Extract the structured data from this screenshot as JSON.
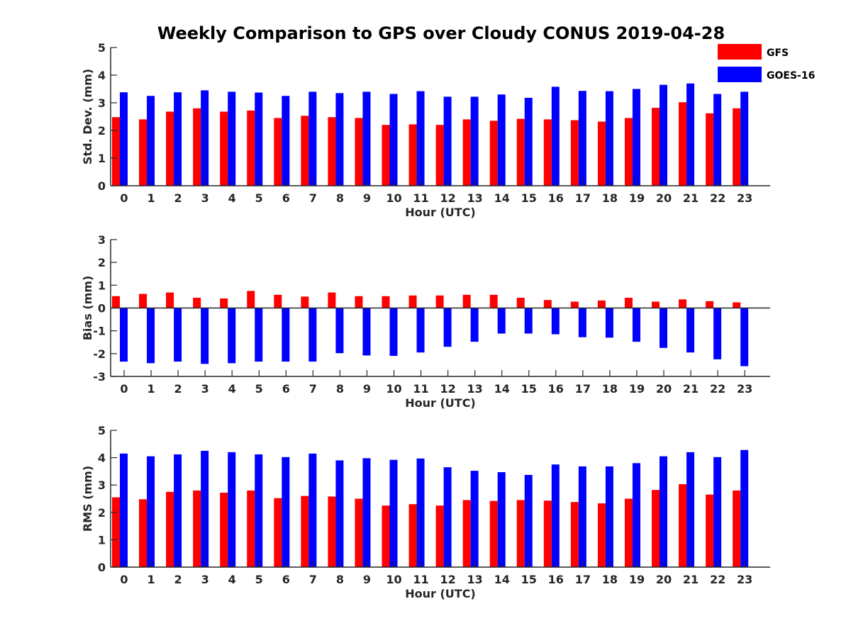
{
  "figure_title": "Weekly Comparison to GPS over Cloudy CONUS 2019-04-28",
  "legend": [
    {
      "label": "GFS",
      "color": "#ff0000"
    },
    {
      "label": "GOES-16",
      "color": "#0000ff"
    }
  ],
  "chart_data": [
    {
      "type": "bar",
      "ylabel": "Std. Dev. (mm)",
      "xlabel": "Hour (UTC)",
      "ylim": [
        0,
        5
      ],
      "yticks": [
        0,
        1,
        2,
        3,
        4,
        5
      ],
      "categories": [
        "0",
        "1",
        "2",
        "3",
        "4",
        "5",
        "6",
        "7",
        "8",
        "9",
        "10",
        "11",
        "12",
        "13",
        "14",
        "15",
        "16",
        "17",
        "18",
        "19",
        "20",
        "21",
        "22",
        "23"
      ],
      "series": [
        {
          "name": "GFS",
          "color": "#ff0000",
          "values": [
            2.48,
            2.4,
            2.68,
            2.8,
            2.68,
            2.72,
            2.45,
            2.53,
            2.48,
            2.45,
            2.2,
            2.22,
            2.2,
            2.4,
            2.35,
            2.42,
            2.4,
            2.37,
            2.32,
            2.45,
            2.82,
            3.02,
            2.62,
            2.8
          ]
        },
        {
          "name": "GOES-16",
          "color": "#0000ff",
          "values": [
            3.38,
            3.25,
            3.38,
            3.45,
            3.4,
            3.37,
            3.25,
            3.4,
            3.35,
            3.4,
            3.32,
            3.42,
            3.22,
            3.22,
            3.3,
            3.18,
            3.58,
            3.43,
            3.42,
            3.5,
            3.65,
            3.7,
            3.32,
            3.4
          ]
        }
      ]
    },
    {
      "type": "bar",
      "ylabel": "Bias (mm)",
      "xlabel": "Hour (UTC)",
      "ylim": [
        -3,
        3
      ],
      "yticks": [
        -3,
        -2,
        -1,
        0,
        1,
        2,
        3
      ],
      "categories": [
        "0",
        "1",
        "2",
        "3",
        "4",
        "5",
        "6",
        "7",
        "8",
        "9",
        "10",
        "11",
        "12",
        "13",
        "14",
        "15",
        "16",
        "17",
        "18",
        "19",
        "20",
        "21",
        "22",
        "23"
      ],
      "series": [
        {
          "name": "GFS",
          "color": "#ff0000",
          "values": [
            0.52,
            0.62,
            0.68,
            0.45,
            0.42,
            0.75,
            0.58,
            0.5,
            0.68,
            0.52,
            0.52,
            0.55,
            0.55,
            0.58,
            0.58,
            0.45,
            0.35,
            0.28,
            0.33,
            0.45,
            0.28,
            0.38,
            0.3,
            0.25
          ]
        },
        {
          "name": "GOES-16",
          "color": "#0000ff",
          "values": [
            -2.35,
            -2.42,
            -2.35,
            -2.45,
            -2.42,
            -2.35,
            -2.35,
            -2.35,
            -1.98,
            -2.08,
            -2.1,
            -1.95,
            -1.7,
            -1.48,
            -1.12,
            -1.12,
            -1.15,
            -1.28,
            -1.3,
            -1.48,
            -1.75,
            -1.95,
            -2.25,
            -2.55
          ]
        }
      ]
    },
    {
      "type": "bar",
      "ylabel": "RMS (mm)",
      "xlabel": "Hour (UTC)",
      "ylim": [
        0,
        5
      ],
      "yticks": [
        0,
        1,
        2,
        3,
        4,
        5
      ],
      "categories": [
        "0",
        "1",
        "2",
        "3",
        "4",
        "5",
        "6",
        "7",
        "8",
        "9",
        "10",
        "11",
        "12",
        "13",
        "14",
        "15",
        "16",
        "17",
        "18",
        "19",
        "20",
        "21",
        "22",
        "23"
      ],
      "series": [
        {
          "name": "GFS",
          "color": "#ff0000",
          "values": [
            2.55,
            2.48,
            2.75,
            2.8,
            2.72,
            2.8,
            2.52,
            2.6,
            2.58,
            2.5,
            2.25,
            2.3,
            2.25,
            2.45,
            2.42,
            2.45,
            2.43,
            2.38,
            2.33,
            2.5,
            2.82,
            3.03,
            2.65,
            2.8
          ]
        },
        {
          "name": "GOES-16",
          "color": "#0000ff",
          "values": [
            4.15,
            4.05,
            4.12,
            4.25,
            4.2,
            4.12,
            4.02,
            4.15,
            3.9,
            3.98,
            3.92,
            3.97,
            3.65,
            3.52,
            3.47,
            3.37,
            3.75,
            3.68,
            3.68,
            3.8,
            4.05,
            4.2,
            4.02,
            4.28
          ]
        }
      ]
    }
  ]
}
